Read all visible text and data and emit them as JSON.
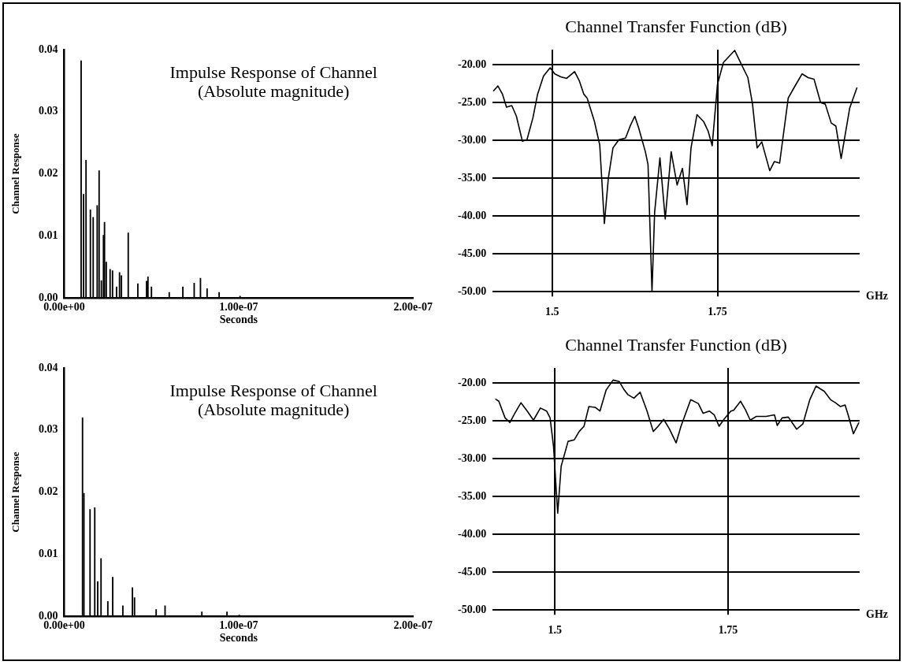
{
  "chart_data": [
    {
      "type": "bar",
      "title": "Impulse Response of Channel",
      "subtitle": "(Absolute magnitude)",
      "xlabel": "Seconds",
      "ylabel": "Channel Response",
      "color": "#000000",
      "x": [
        9.7e-09,
        1.11e-08,
        1.25e-08,
        1.5e-08,
        1.66e-08,
        1.89e-08,
        2e-08,
        2.13e-08,
        2.25e-08,
        2.31e-08,
        2.41e-08,
        2.63e-08,
        2.77e-08,
        3e-08,
        3.17e-08,
        3.28e-08,
        3.67e-08,
        4.22e-08,
        4.72e-08,
        4.8e-08,
        5e-08,
        6.02e-08,
        6.8e-08,
        7.45e-08,
        7.81e-08,
        8.19e-08,
        8.88e-08,
        1.008e-07
      ],
      "values": [
        0.0382,
        0.0167,
        0.0222,
        0.0142,
        0.013,
        0.0149,
        0.0205,
        0.0028,
        0.0101,
        0.0122,
        0.0058,
        0.0046,
        0.0044,
        0.0018,
        0.0041,
        0.0036,
        0.0105,
        0.0023,
        0.0027,
        0.0034,
        0.0018,
        0.0009,
        0.0018,
        0.0024,
        0.0032,
        0.0015,
        0.0009,
        0.0003
      ],
      "xlim": [
        0,
        2e-07
      ],
      "ylim": [
        0,
        0.04
      ],
      "xticks": [
        {
          "value": 0,
          "label": "0.00e+00"
        },
        {
          "value": 1e-07,
          "label": "1.00e-07"
        },
        {
          "value": 2e-07,
          "label": "2.00e-07"
        }
      ],
      "yticks": [
        {
          "value": 0,
          "label": "0.00"
        },
        0.01,
        0.02,
        0.03,
        0.04
      ]
    },
    {
      "type": "line",
      "title": "Channel Transfer Function (dB)",
      "xlabel": "GHz",
      "color": "#000000",
      "grid": true,
      "x": [
        1.411,
        1.418,
        1.425,
        1.431,
        1.439,
        1.446,
        1.455,
        1.462,
        1.471,
        1.478,
        1.487,
        1.497,
        1.504,
        1.513,
        1.522,
        1.534,
        1.541,
        1.548,
        1.553,
        1.564,
        1.572,
        1.579,
        1.585,
        1.592,
        1.601,
        1.611,
        1.618,
        1.625,
        1.631,
        1.641,
        1.645,
        1.651,
        1.655,
        1.663,
        1.671,
        1.68,
        1.689,
        1.697,
        1.704,
        1.71,
        1.719,
        1.729,
        1.736,
        1.742,
        1.75,
        1.759,
        1.776,
        1.787,
        1.796,
        1.803,
        1.81,
        1.817,
        1.829,
        1.836,
        1.844,
        1.857,
        1.866,
        1.878,
        1.887,
        1.896,
        1.906,
        1.913,
        1.922,
        1.929,
        1.937,
        1.95,
        1.961
      ],
      "values": [
        -23.5,
        -22.8,
        -23.9,
        -25.6,
        -25.4,
        -26.8,
        -30.1,
        -29.9,
        -27.0,
        -23.9,
        -21.5,
        -20.4,
        -21.2,
        -21.6,
        -21.8,
        -20.9,
        -22.1,
        -23.9,
        -24.4,
        -27.5,
        -30.6,
        -41.0,
        -35.0,
        -31.0,
        -29.9,
        -29.7,
        -28.1,
        -26.8,
        -28.4,
        -31.5,
        -33.2,
        -50.0,
        -39.5,
        -32.3,
        -40.4,
        -31.5,
        -35.9,
        -33.7,
        -38.5,
        -31.0,
        -26.6,
        -27.5,
        -28.8,
        -30.7,
        -22.6,
        -19.7,
        -18.1,
        -20.1,
        -21.7,
        -25.2,
        -31.0,
        -30.2,
        -34.0,
        -32.8,
        -33.0,
        -24.4,
        -23.0,
        -21.2,
        -21.7,
        -21.9,
        -25.0,
        -25.2,
        -27.7,
        -28.1,
        -32.4,
        -25.7,
        -23.0
      ],
      "xlim": [
        1.41,
        1.965
      ],
      "ylim": [
        -50,
        -18
      ],
      "xticks": [
        {
          "value": 1.5,
          "label": "1.5"
        },
        {
          "value": 1.75,
          "label": "1.75"
        }
      ],
      "yticks": [
        {
          "value": -50,
          "label": "-50.00"
        },
        {
          "value": -45,
          "label": "-45.00"
        },
        {
          "value": -40,
          "label": "-40.00"
        },
        {
          "value": -35,
          "label": "-35.00"
        },
        {
          "value": -30,
          "label": "-30.00"
        },
        {
          "value": -25,
          "label": "-25.00"
        },
        {
          "value": -20,
          "label": "-20.00"
        }
      ]
    },
    {
      "type": "bar",
      "title": "Impulse Response of Channel",
      "subtitle": "(Absolute magnitude)",
      "xlabel": "Seconds",
      "ylabel": "Channel Response",
      "color": "#000000",
      "x": [
        1.05e-08,
        1.13e-08,
        1.48e-08,
        1.75e-08,
        1.92e-08,
        2.11e-08,
        2.5e-08,
        2.78e-08,
        3.36e-08,
        3.91e-08,
        4.03e-08,
        5.27e-08,
        5.78e-08,
        7.89e-08,
        9.33e-08,
        1.003e-07
      ],
      "values": [
        0.032,
        0.0198,
        0.0172,
        0.0175,
        0.0056,
        0.0093,
        0.0024,
        0.0063,
        0.0017,
        0.0046,
        0.003,
        0.0011,
        0.0017,
        0.0007,
        0.0007,
        0.0002
      ],
      "xlim": [
        0,
        2e-07
      ],
      "ylim": [
        0,
        0.04
      ],
      "xticks": [
        {
          "value": 0,
          "label": "0.00e+00"
        },
        {
          "value": 1e-07,
          "label": "1.00e-07"
        },
        {
          "value": 2e-07,
          "label": "2.00e-07"
        }
      ],
      "yticks": [
        {
          "value": 0,
          "label": "0.00"
        },
        0.01,
        0.02,
        0.03,
        0.04
      ]
    },
    {
      "type": "line",
      "title": "Channel Transfer Function (dB)",
      "xlabel": "GHz",
      "color": "#000000",
      "grid": true,
      "x": [
        1.414,
        1.419,
        1.428,
        1.435,
        1.442,
        1.451,
        1.46,
        1.469,
        1.479,
        1.488,
        1.493,
        1.498,
        1.504,
        1.509,
        1.519,
        1.528,
        1.535,
        1.542,
        1.549,
        1.558,
        1.565,
        1.574,
        1.584,
        1.593,
        1.6,
        1.605,
        1.614,
        1.623,
        1.633,
        1.642,
        1.649,
        1.657,
        1.665,
        1.675,
        1.682,
        1.696,
        1.707,
        1.714,
        1.723,
        1.73,
        1.737,
        1.744,
        1.754,
        1.758,
        1.768,
        1.775,
        1.782,
        1.791,
        1.805,
        1.817,
        1.821,
        1.828,
        1.837,
        1.849,
        1.858,
        1.868,
        1.877,
        1.889,
        1.898,
        1.905,
        1.912,
        1.919,
        1.924,
        1.931,
        1.939
      ],
      "values": [
        -22.1,
        -22.4,
        -24.6,
        -25.2,
        -24.0,
        -22.6,
        -23.7,
        -24.9,
        -23.3,
        -23.7,
        -24.6,
        -28.4,
        -37.2,
        -31.0,
        -27.7,
        -27.5,
        -26.4,
        -25.7,
        -23.1,
        -23.2,
        -23.7,
        -20.9,
        -19.6,
        -19.8,
        -20.9,
        -21.5,
        -22.0,
        -21.2,
        -23.7,
        -26.4,
        -25.7,
        -24.8,
        -26.0,
        -27.9,
        -25.7,
        -22.2,
        -22.7,
        -24.0,
        -23.7,
        -24.2,
        -25.7,
        -24.8,
        -23.7,
        -23.6,
        -22.4,
        -23.5,
        -24.9,
        -24.4,
        -24.4,
        -24.2,
        -25.6,
        -24.6,
        -24.5,
        -26.1,
        -25.4,
        -22.2,
        -20.4,
        -21.1,
        -22.2,
        -22.6,
        -23.1,
        -22.9,
        -24.4,
        -26.7,
        -25.2
      ],
      "xlim": [
        1.41,
        1.94
      ],
      "ylim": [
        -50,
        -18
      ],
      "xticks": [
        {
          "value": 1.5,
          "label": "1.5"
        },
        {
          "value": 1.75,
          "label": "1.75"
        }
      ],
      "yticks": [
        {
          "value": -50,
          "label": "-50.00"
        },
        {
          "value": -45,
          "label": "-45.00"
        },
        {
          "value": -40,
          "label": "-40.00"
        },
        {
          "value": -35,
          "label": "-35.00"
        },
        {
          "value": -30,
          "label": "-30.00"
        },
        {
          "value": -25,
          "label": "-25.00"
        },
        {
          "value": -20,
          "label": "-20.00"
        }
      ]
    }
  ]
}
